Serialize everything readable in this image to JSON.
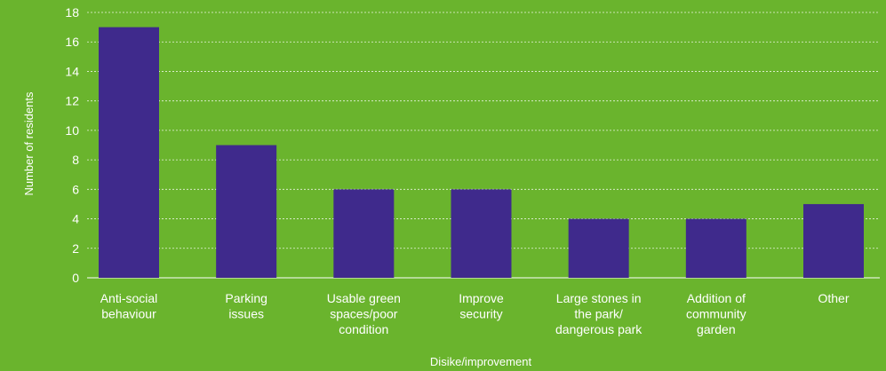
{
  "chart_data": {
    "type": "bar",
    "xlabel": "Disike/improvement",
    "ylabel": "Number of residents",
    "ylim": [
      0,
      18
    ],
    "yticks": [
      "0",
      "2",
      "4",
      "6",
      "8",
      "10",
      "12",
      "14",
      "16",
      "18"
    ],
    "grid": "horizontal dotted",
    "categories": [
      [
        "Anti-social",
        "behaviour"
      ],
      [
        "Parking",
        "issues"
      ],
      [
        "Usable green",
        "spaces/poor",
        "condition"
      ],
      [
        "Improve",
        "security"
      ],
      [
        "Large stones in",
        "the park/",
        "dangerous park"
      ],
      [
        "Addition of",
        "community",
        "garden"
      ],
      [
        "Other"
      ]
    ],
    "values": [
      17,
      9,
      6,
      6,
      4,
      4,
      5
    ]
  },
  "colors": {
    "background": "#6ab42d",
    "bar": "#3f2a8c",
    "text": "#ffffff",
    "grid": "#ffffff"
  }
}
